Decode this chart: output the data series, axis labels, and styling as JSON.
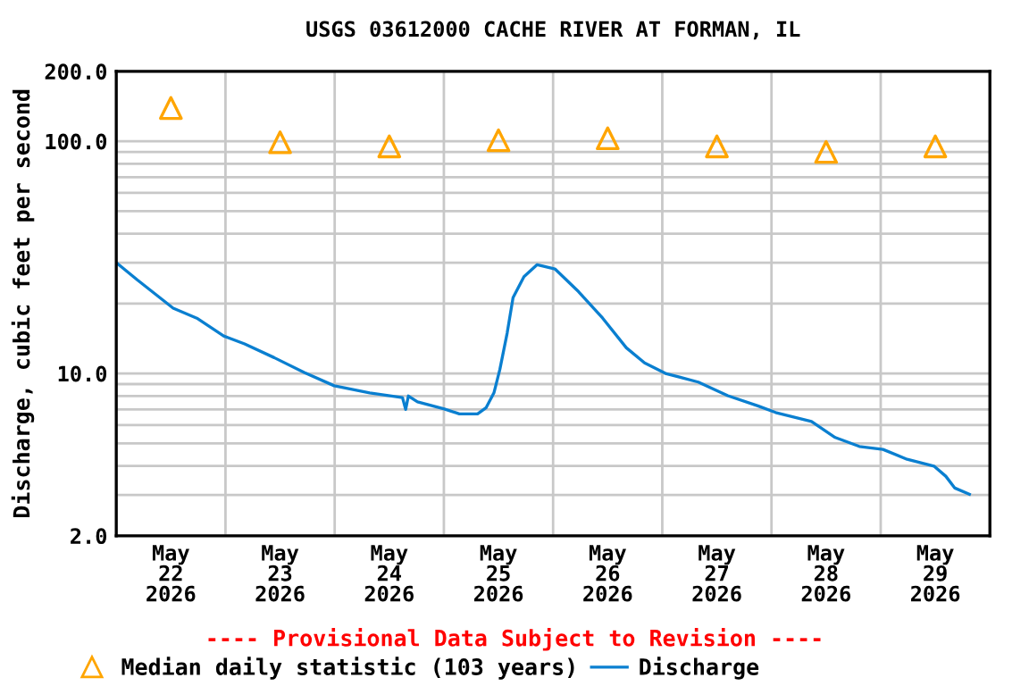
{
  "chart_data": {
    "type": "line",
    "title": "USGS 03612000 CACHE RIVER AT FORMAN, IL",
    "ylabel": "Discharge, cubic feet per second",
    "annotations": [
      "---- Provisional Data Subject to Revision ----"
    ],
    "log": "y",
    "grid": true,
    "legend": "bottom",
    "xlim": [
      "2026-05-22T00:00",
      "2026-05-30T00:00"
    ],
    "xticks": [
      {
        "value": "2026-05-22T12:00",
        "label": "May\n22\n2026"
      },
      {
        "value": "2026-05-23T00:00",
        "label": null
      },
      {
        "value": "2026-05-23T12:00",
        "label": "May\n23\n2026"
      },
      {
        "value": "2026-05-24T00:00",
        "label": null
      },
      {
        "value": "2026-05-24T12:00",
        "label": "May\n24\n2026"
      },
      {
        "value": "2026-05-25T00:00",
        "label": null
      },
      {
        "value": "2026-05-25T12:00",
        "label": "May\n25\n2026"
      },
      {
        "value": "2026-05-26T00:00",
        "label": null
      },
      {
        "value": "2026-05-26T12:00",
        "label": "May\n26\n2026"
      },
      {
        "value": "2026-05-27T00:00",
        "label": null
      },
      {
        "value": "2026-05-27T12:00",
        "label": "May\n27\n2026"
      },
      {
        "value": "2026-05-28T00:00",
        "label": null
      },
      {
        "value": "2026-05-28T12:00",
        "label": "May\n28\n2026"
      },
      {
        "value": "2026-05-29T00:00",
        "label": null
      },
      {
        "value": "2026-05-29T12:00",
        "label": "May\n29\n2026"
      }
    ],
    "ylim": [
      2,
      200
    ],
    "yticks": [
      {
        "value": 2,
        "label": "2.0"
      },
      {
        "value": 3,
        "label": null
      },
      {
        "value": 4,
        "label": null
      },
      {
        "value": 5,
        "label": null
      },
      {
        "value": 6,
        "label": null
      },
      {
        "value": 7,
        "label": null
      },
      {
        "value": 8,
        "label": null
      },
      {
        "value": 9,
        "label": null
      },
      {
        "value": 10,
        "label": "10.0"
      },
      {
        "value": 20,
        "label": null
      },
      {
        "value": 30,
        "label": null
      },
      {
        "value": 40,
        "label": null
      },
      {
        "value": 50,
        "label": null
      },
      {
        "value": 60,
        "label": null
      },
      {
        "value": 70,
        "label": null
      },
      {
        "value": 80,
        "label": null
      },
      {
        "value": 90,
        "label": null
      },
      {
        "value": 100,
        "label": "100.0"
      },
      {
        "value": 200,
        "label": "200.0"
      }
    ],
    "series": [
      {
        "name": "Median daily statistic (103 years)",
        "type": "scatter",
        "marker": "triangle",
        "color": "#ffa500",
        "x": [
          "2026-05-22T12:00",
          "2026-05-23T12:00",
          "2026-05-24T12:00",
          "2026-05-25T12:00",
          "2026-05-26T12:00",
          "2026-05-27T12:00",
          "2026-05-28T12:00",
          "2026-05-29T12:00"
        ],
        "values": [
          139,
          99,
          95,
          101,
          103,
          95,
          90,
          95
        ]
      },
      {
        "name": "Discharge",
        "color": "#0a7fd0",
        "line_style": "solid",
        "x": [
          "2026-05-22T00:18",
          "2026-05-22T04:36",
          "2026-05-22T12:30",
          "2026-05-22T17:42",
          "2026-05-22T23:36",
          "2026-05-23T04:12",
          "2026-05-23T10:42",
          "2026-05-23T17:18",
          "2026-05-23T23:54",
          "2026-05-24T07:42",
          "2026-05-24T14:54",
          "2026-05-24T15:36",
          "2026-05-24T16:12",
          "2026-05-24T18:12",
          "2026-05-25T00:06",
          "2026-05-25T03:24",
          "2026-05-25T07:24",
          "2026-05-25T09:18",
          "2026-05-25T11:00",
          "2026-05-25T12:18",
          "2026-05-25T13:54",
          "2026-05-25T15:12",
          "2026-05-25T17:36",
          "2026-05-25T20:30",
          "2026-05-26T00:24",
          "2026-05-26T05:36",
          "2026-05-26T10:54",
          "2026-05-26T16:06",
          "2026-05-26T20:06",
          "2026-05-27T00:42",
          "2026-05-27T07:54",
          "2026-05-27T14:24",
          "2026-05-27T21:00",
          "2026-05-28T00:54",
          "2026-05-28T08:48",
          "2026-05-28T14:00",
          "2026-05-28T19:18",
          "2026-05-29T00:30",
          "2026-05-29T05:48",
          "2026-05-29T11:42",
          "2026-05-29T14:18",
          "2026-05-29T16:18",
          "2026-05-29T19:30"
        ],
        "values": [
          29.7,
          25.3,
          19.1,
          17.3,
          14.5,
          13.4,
          11.7,
          10.1,
          8.85,
          8.25,
          7.87,
          7.0,
          8.0,
          7.55,
          7.03,
          6.7,
          6.7,
          7.13,
          8.25,
          10.4,
          14.9,
          21.2,
          26.1,
          29.4,
          28.2,
          22.5,
          17.3,
          12.9,
          11.1,
          10.0,
          9.18,
          8.02,
          7.25,
          6.79,
          6.21,
          5.3,
          4.85,
          4.71,
          4.27,
          3.99,
          3.61,
          3.21,
          3.02
        ]
      }
    ]
  }
}
